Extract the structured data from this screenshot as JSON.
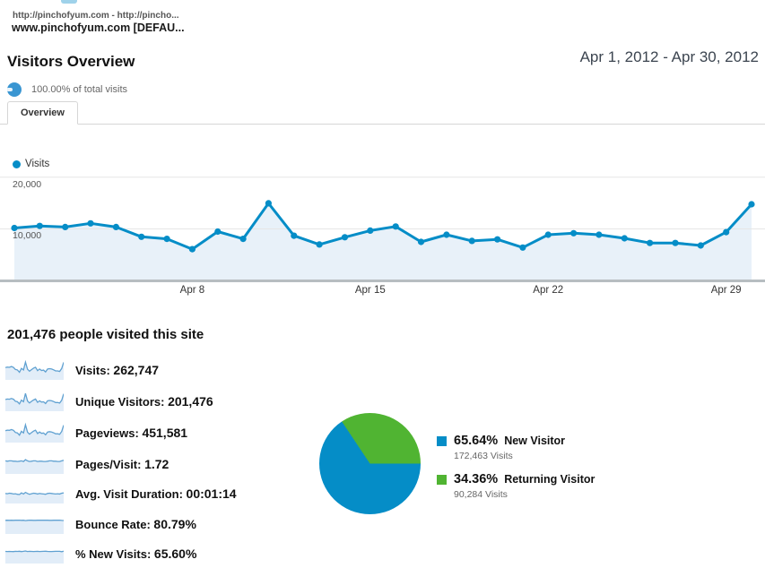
{
  "header": {
    "url_line": "http://pinchofyum.com - http://pincho...",
    "profile_name": "www.pinchofyum.com [DEFAU..."
  },
  "page": {
    "title": "Visitors Overview",
    "date_range": "Apr 1, 2012 - Apr 30, 2012",
    "segment_label": "100.00% of total visits",
    "tab_label": "Overview"
  },
  "chart_data": [
    {
      "type": "line",
      "title": "Visits by day",
      "categories": [
        "Apr 1",
        "Apr 2",
        "Apr 3",
        "Apr 4",
        "Apr 5",
        "Apr 6",
        "Apr 7",
        "Apr 8",
        "Apr 9",
        "Apr 10",
        "Apr 11",
        "Apr 12",
        "Apr 13",
        "Apr 14",
        "Apr 15",
        "Apr 16",
        "Apr 17",
        "Apr 18",
        "Apr 19",
        "Apr 20",
        "Apr 21",
        "Apr 22",
        "Apr 23",
        "Apr 24",
        "Apr 25",
        "Apr 26",
        "Apr 27",
        "Apr 28",
        "Apr 29",
        "Apr 30"
      ],
      "series": [
        {
          "name": "Visits",
          "values": [
            10000,
            10400,
            10200,
            10900,
            10200,
            8300,
            7900,
            5900,
            9300,
            7900,
            14800,
            8500,
            6800,
            8200,
            9500,
            10300,
            7300,
            8700,
            7500,
            7800,
            6200,
            8700,
            9000,
            8700,
            8000,
            7100,
            7100,
            6600,
            9200,
            14600
          ]
        }
      ],
      "ylim": [
        0,
        20000
      ],
      "yticks": [
        20000,
        10000
      ],
      "ytick_labels": [
        "20,000",
        "10,000"
      ],
      "x_labels_shown": [
        "Apr 8",
        "Apr 15",
        "Apr 22",
        "Apr 29"
      ],
      "x_label_day_indices": [
        7,
        14,
        21,
        28
      ],
      "grid": "horizontal",
      "legend_position": "top-left",
      "line_color": "#058dc7",
      "area_fill": "#e8f1f9"
    },
    {
      "type": "pie",
      "title": "New vs Returning Visitors",
      "legend_position": "right",
      "slices": [
        {
          "label": "New Visitor",
          "pct": 65.64,
          "pct_label": "65.64%",
          "visits_label": "172,463 Visits",
          "color": "#058dc7"
        },
        {
          "label": "Returning Visitor",
          "pct": 34.36,
          "pct_label": "34.36%",
          "visits_label": "90,284 Visits",
          "color": "#50b432"
        }
      ]
    }
  ],
  "metrics": {
    "heading": "201,476 people visited this site",
    "rows": [
      {
        "label": "Visits:",
        "value": "262,747",
        "spark": [
          10000,
          10400,
          10200,
          10900,
          10200,
          8300,
          7900,
          5900,
          9300,
          7900,
          14800,
          8500,
          6800,
          8200,
          9500,
          10300,
          7300,
          8700,
          7500,
          7800,
          6200,
          8700,
          9000,
          8700,
          8000,
          7100,
          7100,
          6600,
          9200,
          14600
        ],
        "spark_range": [
          0,
          16500
        ]
      },
      {
        "label": "Unique Visitors:",
        "value": "201,476",
        "spark": [
          7800,
          8100,
          8000,
          8500,
          8000,
          6500,
          6200,
          4600,
          7300,
          6200,
          12100,
          6700,
          5300,
          6400,
          7400,
          8100,
          5700,
          6800,
          5900,
          6100,
          4900,
          6800,
          7100,
          6800,
          6300,
          5600,
          5600,
          5200,
          7200,
          11800
        ],
        "spark_range": [
          0,
          13500
        ]
      },
      {
        "label": "Pageviews:",
        "value": "451,581",
        "spark": [
          17000,
          17800,
          17500,
          18700,
          17500,
          14200,
          13500,
          10100,
          16000,
          13500,
          26000,
          14600,
          11600,
          14000,
          16300,
          17700,
          12500,
          14900,
          12900,
          13400,
          10600,
          14900,
          15400,
          14900,
          13700,
          12200,
          12200,
          11300,
          15800,
          25400
        ],
        "spark_range": [
          0,
          29000
        ]
      },
      {
        "label": "Pages/Visit:",
        "value": "1.72",
        "spark": [
          1.72,
          1.71,
          1.72,
          1.72,
          1.71,
          1.71,
          1.7,
          1.71,
          1.72,
          1.7,
          1.76,
          1.72,
          1.7,
          1.71,
          1.72,
          1.72,
          1.7,
          1.71,
          1.71,
          1.7,
          1.7,
          1.71,
          1.72,
          1.72,
          1.71,
          1.71,
          1.7,
          1.7,
          1.72,
          1.74
        ],
        "spark_range": [
          1.3,
          1.95
        ]
      },
      {
        "label": "Avg. Visit Duration:",
        "value": "00:01:14",
        "spark": [
          74,
          73,
          75,
          74,
          72,
          73,
          71,
          70,
          76,
          72,
          78,
          74,
          71,
          73,
          75,
          74,
          72,
          74,
          73,
          72,
          71,
          74,
          75,
          74,
          73,
          72,
          73,
          72,
          75,
          76
        ],
        "spark_range": [
          40,
          110
        ]
      },
      {
        "label": "Bounce Rate:",
        "value": "80.79%",
        "spark": [
          80.5,
          80.8,
          80.6,
          80.9,
          80.7,
          81,
          80.8,
          81.2,
          80.5,
          81,
          79.8,
          80.7,
          81.1,
          80.8,
          80.6,
          80.5,
          81,
          80.8,
          80.9,
          81,
          81.2,
          80.8,
          80.6,
          80.7,
          80.9,
          81,
          81,
          81.1,
          80.4,
          79.9
        ],
        "spark_range": [
          40,
          100
        ]
      },
      {
        "label": "% New Visits:",
        "value": "65.60%",
        "spark": [
          65.6,
          65.4,
          65.8,
          65.5,
          65.2,
          66,
          65.7,
          66.3,
          65.1,
          65.9,
          67,
          65.5,
          66.1,
          65.6,
          65.3,
          65.8,
          66,
          65.5,
          65.7,
          66,
          66.2,
          65.6,
          65.3,
          65.5,
          65.8,
          66,
          65.9,
          66.1,
          64.9,
          66.5
        ],
        "spark_range": [
          30,
          90
        ]
      }
    ]
  },
  "colors": {
    "brand_blue": "#058dc7",
    "green": "#50b432",
    "spark_line": "#60a1d1",
    "spark_fill": "#e2edf8",
    "grid": "#e6e6e6",
    "baseline": "#b7bdc1"
  }
}
